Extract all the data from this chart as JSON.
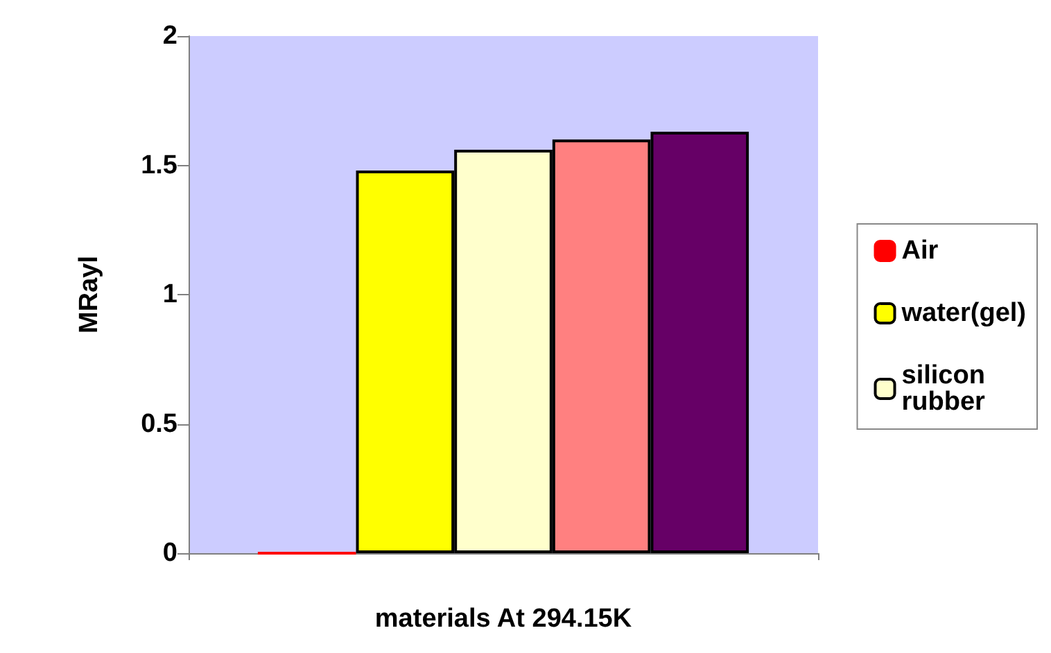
{
  "chart_data": {
    "type": "bar",
    "xlabel": "materials At 294.15K",
    "ylabel": "MRayl",
    "categories": [
      null
    ],
    "series": [
      {
        "name": "Air",
        "color": "#ff0000",
        "values": [
          0
        ]
      },
      {
        "name": "water(gel)",
        "color": "#ffff00",
        "values": [
          1.48
        ]
      },
      {
        "name": "silicon rubber",
        "color": "#ffffcc",
        "values": [
          1.56
        ]
      },
      {
        "color": "#ff8080",
        "values": [
          1.6
        ]
      },
      {
        "color": "#660066",
        "values": [
          1.63
        ]
      }
    ],
    "ylim": [
      0,
      2
    ],
    "yticks": [
      0,
      0.5,
      1,
      1.5,
      2
    ],
    "grid": false,
    "legend": "right"
  }
}
